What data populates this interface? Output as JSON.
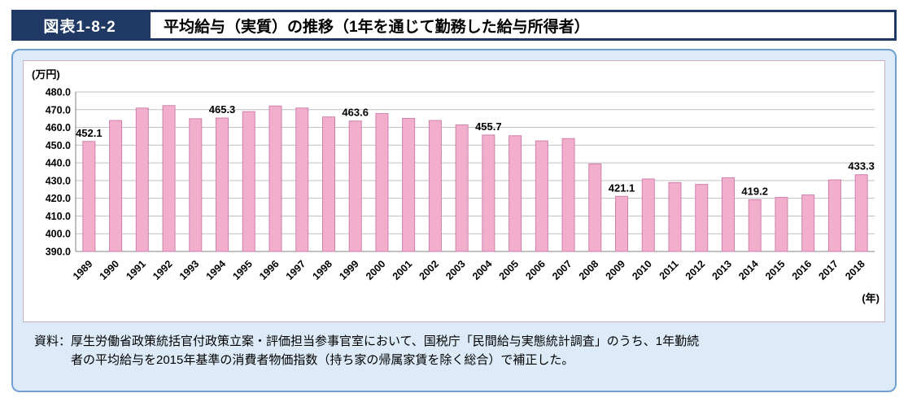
{
  "header": {
    "figure_label": "図表1-8-2",
    "title": "平均給与（実質）の推移（1年を通じて勤務した給与所得者）"
  },
  "chart_data": {
    "type": "bar",
    "title": "平均給与（実質）の推移（1年を通じて勤務した給与所得者）",
    "unit_label": "(万円)",
    "x_axis_label": "(年)",
    "ylim": [
      390.0,
      480.0
    ],
    "ytick_step": 10,
    "grid": true,
    "legend": "none",
    "yticks": [
      "390.0",
      "400.0",
      "410.0",
      "420.0",
      "430.0",
      "440.0",
      "450.0",
      "460.0",
      "470.0",
      "480.0"
    ],
    "categories": [
      "1989",
      "1990",
      "1991",
      "1992",
      "1993",
      "1994",
      "1995",
      "1996",
      "1997",
      "1998",
      "1999",
      "2000",
      "2001",
      "2002",
      "2003",
      "2004",
      "2005",
      "2006",
      "2007",
      "2008",
      "2009",
      "2010",
      "2011",
      "2012",
      "2013",
      "2014",
      "2015",
      "2016",
      "2017",
      "2018"
    ],
    "values": [
      452.1,
      463.9,
      470.9,
      472.3,
      464.9,
      465.3,
      468.9,
      472.1,
      470.9,
      465.9,
      463.6,
      467.8,
      465.1,
      463.9,
      461.4,
      455.7,
      455.3,
      452.4,
      453.7,
      439.4,
      421.1,
      430.9,
      428.9,
      427.8,
      431.6,
      419.2,
      420.5,
      421.9,
      430.4,
      433.3
    ],
    "data_labels": {
      "1989": "452.1",
      "1994": "465.3",
      "1999": "463.6",
      "2004": "455.7",
      "2009": "421.1",
      "2014": "419.2",
      "2018": "433.3"
    },
    "colors": {
      "bar_fill": "#f2afcc",
      "bar_stroke": "#cf7fae",
      "grid": "#c0c0c0",
      "axis": "#808080",
      "text": "#000000",
      "header_navy": "#1f3864",
      "panel_bg": "#dcebf7",
      "panel_border": "#6fa0cf"
    }
  },
  "source_note": {
    "line1": "資料：厚生労働省政策統括官付政策立案・評価担当参事官室において、国税庁「民間給与実態統計調査」のうち、1年勤続",
    "line2": "者の平均給与を2015年基準の消費者物価指数（持ち家の帰属家賃を除く総合）で補正した。"
  }
}
